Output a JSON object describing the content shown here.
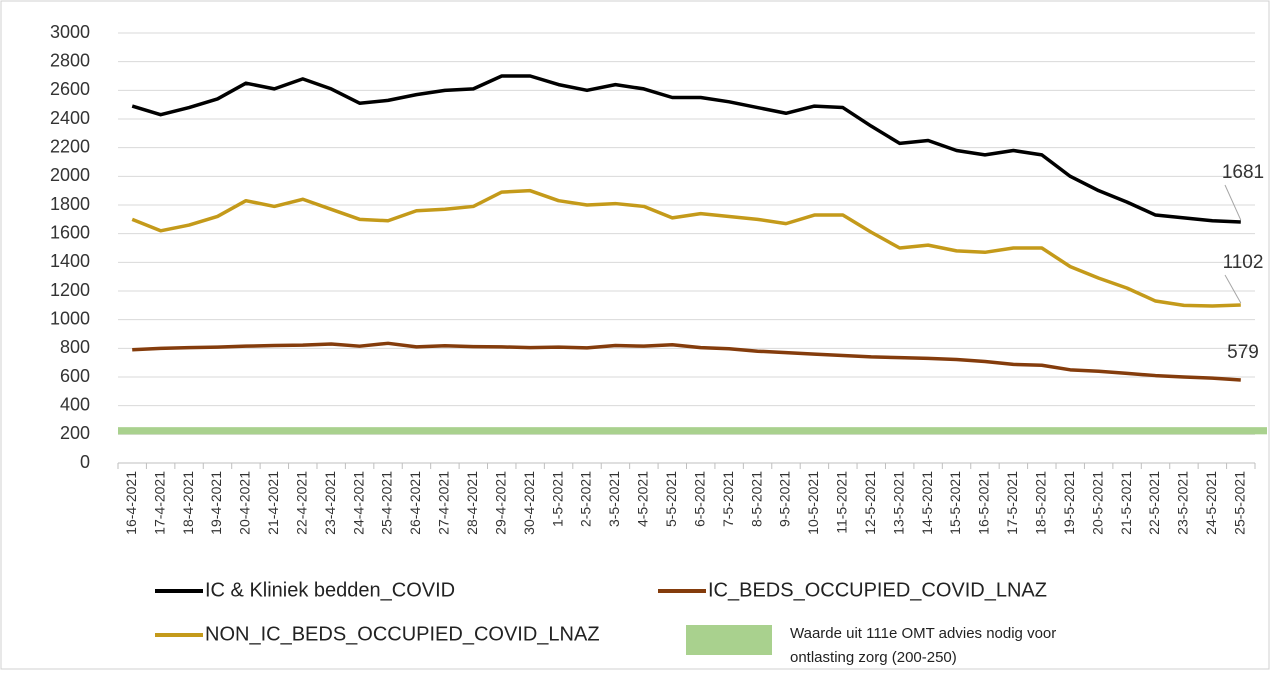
{
  "chart_data": {
    "type": "line",
    "categories": [
      "16-4-2021",
      "17-4-2021",
      "18-4-2021",
      "19-4-2021",
      "20-4-2021",
      "21-4-2021",
      "22-4-2021",
      "23-4-2021",
      "24-4-2021",
      "25-4-2021",
      "26-4-2021",
      "27-4-2021",
      "28-4-2021",
      "29-4-2021",
      "30-4-2021",
      "1-5-2021",
      "2-5-2021",
      "3-5-2021",
      "4-5-2021",
      "5-5-2021",
      "6-5-2021",
      "7-5-2021",
      "8-5-2021",
      "9-5-2021",
      "10-5-2021",
      "11-5-2021",
      "12-5-2021",
      "13-5-2021",
      "14-5-2021",
      "15-5-2021",
      "16-5-2021",
      "17-5-2021",
      "18-5-2021",
      "19-5-2021",
      "20-5-2021",
      "21-5-2021",
      "22-5-2021",
      "23-5-2021",
      "24-5-2021",
      "25-5-2021"
    ],
    "series": [
      {
        "name": "IC & Kliniek bedden_COVID",
        "color": "#000000",
        "values": [
          2490,
          2430,
          2480,
          2540,
          2650,
          2610,
          2680,
          2610,
          2510,
          2530,
          2570,
          2600,
          2610,
          2700,
          2700,
          2640,
          2600,
          2640,
          2610,
          2550,
          2550,
          2520,
          2480,
          2440,
          2490,
          2480,
          2350,
          2230,
          2250,
          2180,
          2150,
          2180,
          2150,
          2000,
          1900,
          1820,
          1730,
          1710,
          1690,
          1681
        ]
      },
      {
        "name": "IC_BEDS_OCCUPIED_COVID_LNAZ",
        "color": "#843c0c",
        "values": [
          790,
          800,
          805,
          808,
          815,
          820,
          822,
          830,
          815,
          835,
          810,
          818,
          812,
          810,
          805,
          808,
          803,
          820,
          815,
          825,
          805,
          797,
          780,
          770,
          760,
          750,
          740,
          735,
          730,
          722,
          708,
          688,
          682,
          650,
          640,
          625,
          610,
          600,
          592,
          579
        ]
      },
      {
        "name": "NON_IC_BEDS_OCCUPIED_COVID_LNAZ",
        "color": "#c49a1a",
        "values": [
          1700,
          1620,
          1660,
          1720,
          1830,
          1790,
          1840,
          1770,
          1700,
          1690,
          1760,
          1770,
          1790,
          1890,
          1900,
          1830,
          1800,
          1810,
          1790,
          1710,
          1740,
          1720,
          1700,
          1670,
          1730,
          1730,
          1610,
          1500,
          1520,
          1480,
          1470,
          1500,
          1500,
          1370,
          1290,
          1220,
          1130,
          1100,
          1095,
          1102
        ]
      }
    ],
    "reference_band": {
      "range": [
        200,
        250
      ],
      "color": "#a9d18e",
      "label": [
        "Waarde uit 111e OMT advies nodig voor",
        "ontlasting zorg (200-250)"
      ]
    },
    "ylim": [
      0,
      3000
    ],
    "yticks": [
      0,
      200,
      400,
      600,
      800,
      1000,
      1200,
      1400,
      1600,
      1800,
      2000,
      2200,
      2400,
      2600,
      2800,
      3000
    ],
    "grid": true
  }
}
